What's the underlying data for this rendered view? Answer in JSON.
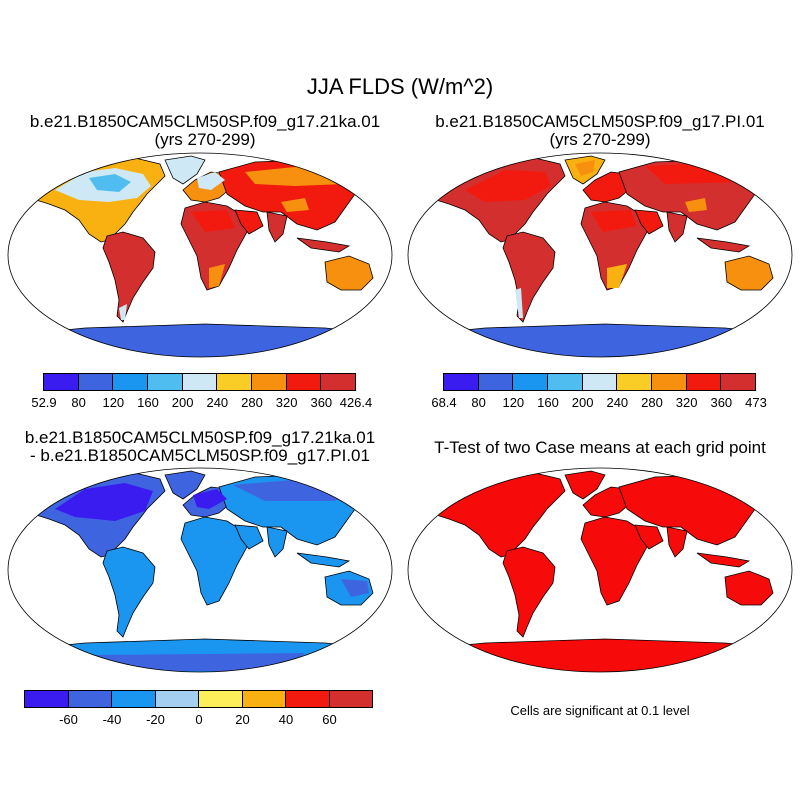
{
  "title": "JJA FLDS (W/m^2)",
  "panels": [
    {
      "title_line1": "b.e21.B1850CAM5CLM50SP.f09_g17.21ka.01",
      "title_line2": "(yrs 270-299)",
      "fill": "mean_21ka"
    },
    {
      "title_line1": "b.e21.B1850CAM5CLM50SP.f09_g17.PI.01",
      "title_line2": "(yrs 270-299)",
      "fill": "mean_pi"
    },
    {
      "title_line1": "b.e21.B1850CAM5CLM50SP.f09_g17.21ka.01",
      "title_line2": "- b.e21.B1850CAM5CLM50SP.f09_g17.PI.01",
      "fill": "difference"
    },
    {
      "title_line1": "T-Test of two Case means at each grid point",
      "title_line2": "",
      "fill": "significance"
    }
  ],
  "colorbars": {
    "mean_21ka": {
      "colors": [
        "#3a1cf0",
        "#3f64e0",
        "#1a96f0",
        "#4fbdf0",
        "#cfe8f5",
        "#f9cc26",
        "#f7900f",
        "#f21a0e",
        "#d42f2f"
      ],
      "labels": [
        "52.9",
        "80",
        "120",
        "160",
        "200",
        "240",
        "280",
        "320",
        "360",
        "426.4"
      ],
      "end_labels": true
    },
    "mean_pi": {
      "colors": [
        "#3a1cf0",
        "#3f64e0",
        "#1a96f0",
        "#4fbdf0",
        "#cfe8f5",
        "#f9cc26",
        "#f7900f",
        "#f21a0e",
        "#d42f2f"
      ],
      "labels": [
        "68.4",
        "80",
        "120",
        "160",
        "200",
        "240",
        "280",
        "320",
        "360",
        "473"
      ],
      "end_labels": true
    },
    "difference": {
      "colors": [
        "#3a1cf0",
        "#3f64e0",
        "#1a96f0",
        "#a5cff0",
        "#fcef5a",
        "#f9b011",
        "#f21a0e",
        "#d42f2f"
      ],
      "labels": [
        "-60",
        "-40",
        "-20",
        "0",
        "20",
        "40",
        "60"
      ],
      "end_labels": false
    }
  },
  "significance_note": "Cells are significant at 0.1 level",
  "palette": {
    "ocean": "#ffffff",
    "land_21ka_dominant": "#f21a0e",
    "land_pi_dominant": "#d42f2f",
    "land_diff_dominant": "#1a96f0",
    "ice_sheet_21ka": "#cfe8f5",
    "antarctica": "#3f64e0",
    "significant": "#f70a0a"
  }
}
